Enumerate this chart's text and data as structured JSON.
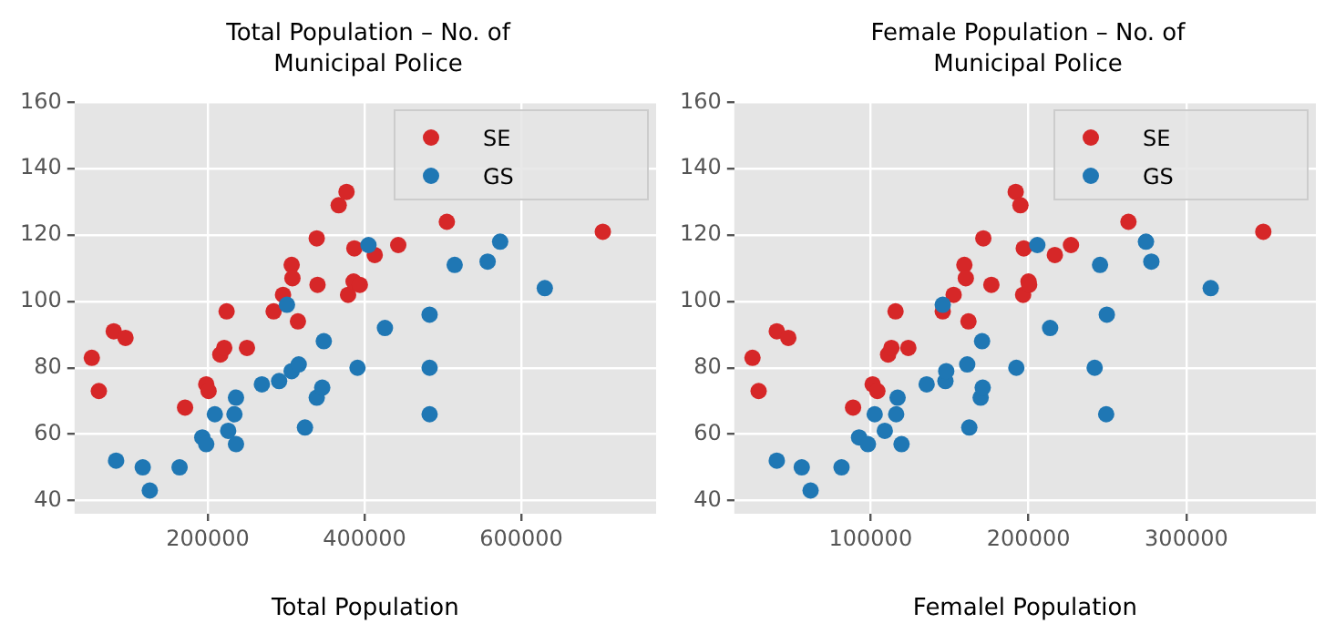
{
  "chart_data": [
    {
      "type": "scatter",
      "title": "Total Population – No. of Municipal Police",
      "xlabel": "Total Population",
      "xlim": [
        30000,
        772000
      ],
      "xticks": [
        200000,
        400000,
        600000
      ],
      "ylim": [
        36,
        160
      ],
      "yticks": [
        40,
        60,
        80,
        100,
        120,
        140,
        160
      ],
      "grid": true,
      "legend": "top right",
      "marker": "circle",
      "series": [
        {
          "name": "SE",
          "color": "#d62728",
          "x": [
            52000,
            61000,
            80000,
            95000,
            171000,
            198000,
            201000,
            216000,
            221000,
            224000,
            250000,
            284000,
            296000,
            307000,
            308000,
            315000,
            339000,
            340000,
            367000,
            377000,
            379000,
            387000,
            386000,
            394000,
            413000,
            443000,
            505000,
            704000
          ],
          "values": [
            83,
            73,
            91,
            89,
            68,
            75,
            73,
            84,
            86,
            97,
            86,
            97,
            102,
            111,
            107,
            94,
            119,
            105,
            129,
            133,
            102,
            116,
            106,
            105,
            114,
            117,
            124,
            121
          ]
        },
        {
          "name": "GS",
          "color": "#1f77b4",
          "x": [
            83000,
            117000,
            126000,
            164000,
            193000,
            198000,
            209000,
            226000,
            236000,
            234000,
            236000,
            269000,
            291000,
            301000,
            307000,
            316000,
            339000,
            346000,
            348000,
            324000,
            391000,
            405000,
            426000,
            483000,
            483000,
            483000,
            515000,
            557000,
            573000,
            630000
          ],
          "values": [
            52,
            50,
            43,
            50,
            59,
            57,
            66,
            61,
            71,
            66,
            57,
            75,
            76,
            99,
            79,
            81,
            71,
            74,
            88,
            62,
            80,
            117,
            92,
            96,
            80,
            66,
            111,
            112,
            118,
            104
          ]
        }
      ]
    },
    {
      "type": "scatter",
      "title": "Female Population – No. of Municipal Police",
      "xlabel": "Femalel Population",
      "xlim": [
        13700,
        382000
      ],
      "xticks": [
        100000,
        200000,
        300000
      ],
      "ylim": [
        36,
        160
      ],
      "yticks": [
        40,
        60,
        80,
        100,
        120,
        140,
        160
      ],
      "grid": true,
      "legend": "top right",
      "marker": "circle",
      "series": [
        {
          "name": "SE",
          "color": "#d62728",
          "x": [
            25200,
            29100,
            40600,
            47900,
            88900,
            101300,
            104300,
            111100,
            113200,
            115800,
            123900,
            145700,
            152600,
            159400,
            160300,
            162000,
            171400,
            176500,
            191900,
            194900,
            196600,
            197000,
            200000,
            200400,
            216700,
            226900,
            263300,
            348700
          ],
          "values": [
            83,
            73,
            91,
            89,
            68,
            75,
            73,
            84,
            86,
            97,
            86,
            97,
            102,
            111,
            107,
            94,
            119,
            105,
            133,
            129,
            102,
            116,
            106,
            105,
            114,
            117,
            124,
            121
          ]
        },
        {
          "name": "GS",
          "color": "#1f77b4",
          "x": [
            40600,
            56400,
            62000,
            81600,
            92700,
            98300,
            102600,
            109000,
            117100,
            116200,
            119600,
            135500,
            147400,
            145700,
            147900,
            161200,
            169700,
            171000,
            170600,
            162500,
            192300,
            205600,
            213700,
            249600,
            241900,
            249200,
            245300,
            274400,
            277800,
            315400
          ],
          "values": [
            52,
            50,
            43,
            50,
            59,
            57,
            66,
            61,
            71,
            66,
            57,
            75,
            76,
            99,
            79,
            81,
            71,
            74,
            88,
            62,
            80,
            117,
            92,
            96,
            80,
            66,
            111,
            118,
            112,
            104
          ]
        }
      ]
    }
  ]
}
